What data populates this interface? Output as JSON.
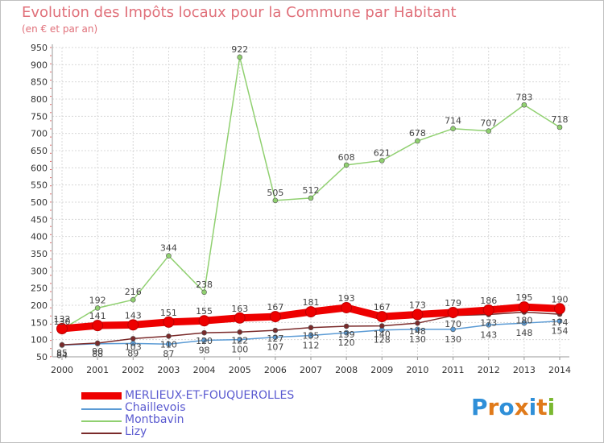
{
  "title": "Evolution des Impôts locaux pour la Commune par Habitant",
  "subtitle": "(en € et par an)",
  "logo": {
    "text": "Proxiti",
    "letters": [
      "P",
      "r",
      "o",
      "x",
      "i",
      "t",
      "i"
    ],
    "colors": [
      "#2f8fd8",
      "#e07a1a",
      "#2f8fd8",
      "#e07a1a",
      "#2f8fd8",
      "#e07a1a",
      "#7ab830"
    ]
  },
  "chart_data": {
    "type": "line",
    "title": "Evolution des Impôts locaux pour la Commune par Habitant",
    "subtitle": "(en € et par an)",
    "xlabel": "",
    "ylabel": "",
    "x": [
      "2000",
      "2001",
      "2002",
      "2003",
      "2004",
      "2005",
      "2006",
      "2007",
      "2008",
      "2009",
      "2010",
      "2011",
      "2012",
      "2013",
      "2014"
    ],
    "ylim": [
      50,
      950
    ],
    "yticks": [
      50,
      100,
      150,
      200,
      250,
      300,
      350,
      400,
      450,
      500,
      550,
      600,
      650,
      700,
      750,
      800,
      850,
      900,
      950
    ],
    "grid": true,
    "legend_position": "bottom-left",
    "series": [
      {
        "name": "MERLIEUX-ET-FOUQUEROLLES",
        "color": "#ee0000",
        "values": [
          132,
          141,
          143,
          151,
          155,
          163,
          167,
          181,
          193,
          167,
          173,
          179,
          186,
          195,
          190
        ],
        "labels": [
          "132",
          "141",
          "143",
          "151",
          "155",
          "163",
          "167",
          "181",
          "193",
          "167",
          "173",
          "179",
          "186",
          "195",
          "190"
        ],
        "style": "thick"
      },
      {
        "name": "Chaillevois",
        "color": "#5b9bd5",
        "values": [
          84,
          88,
          89,
          87,
          98,
          100,
          107,
          112,
          120,
          128,
          130,
          130,
          143,
          148,
          154
        ],
        "labels": [
          "84",
          "88",
          "89",
          "87",
          "98",
          "100",
          "107",
          "112",
          "120",
          "128",
          "130",
          "130",
          "143",
          "148",
          "154"
        ],
        "style": "thin"
      },
      {
        "name": "Montbavin",
        "color": "#90d070",
        "values": [
          130,
          192,
          216,
          344,
          238,
          922,
          505,
          512,
          608,
          621,
          678,
          714,
          707,
          783,
          718
        ],
        "labels": [
          "130",
          "192",
          "216",
          "344",
          "238",
          "922",
          "505",
          "512",
          "608",
          "621",
          "678",
          "714",
          "707",
          "783",
          "718"
        ],
        "style": "thin"
      },
      {
        "name": "Lizy",
        "color": "#7a2a2a",
        "values": [
          85,
          90,
          103,
          110,
          120,
          122,
          127,
          135,
          139,
          140,
          148,
          170,
          173,
          180,
          174
        ],
        "labels": [
          "85",
          "90",
          "103",
          "110",
          "120",
          "122",
          "127",
          "135",
          "139",
          "140",
          "148",
          "170",
          "173",
          "180",
          "174"
        ],
        "style": "thin"
      }
    ]
  }
}
